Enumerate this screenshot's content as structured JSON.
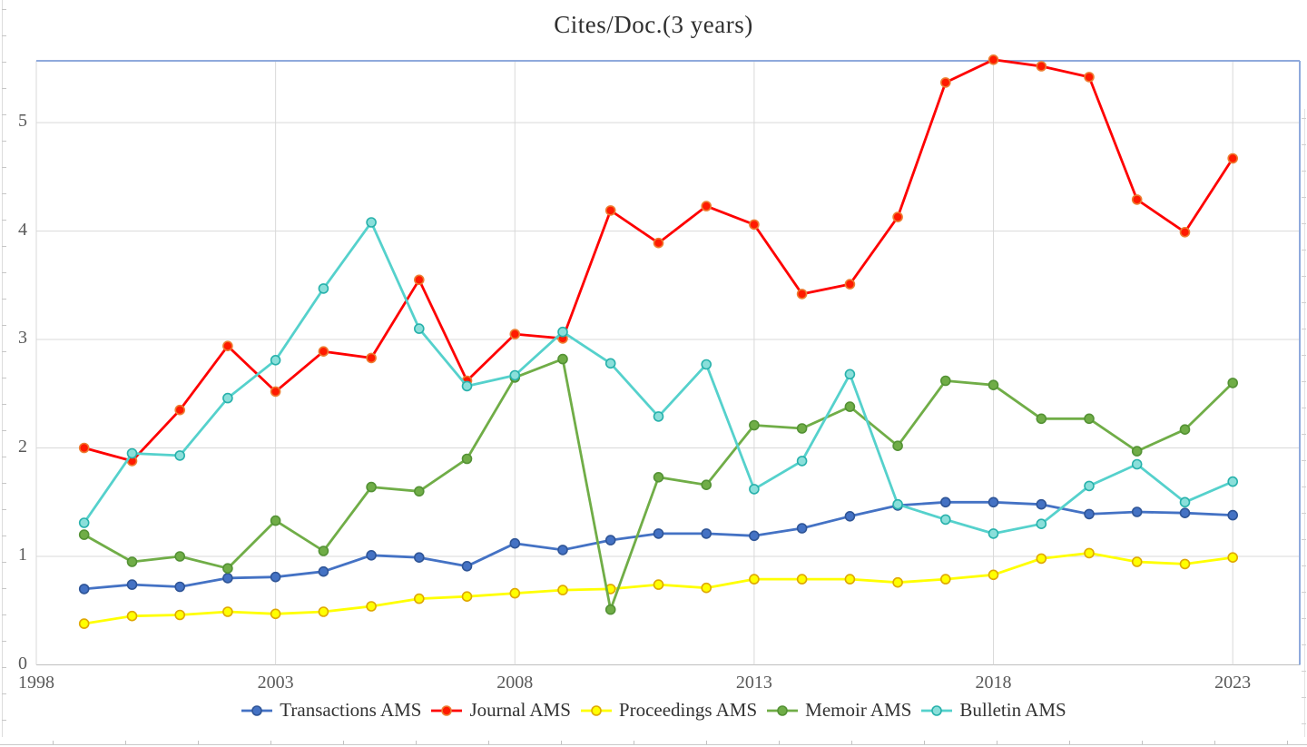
{
  "title": "Cites/Doc.(3 years)",
  "chart_data": {
    "type": "line",
    "title": "Cites/Doc.(3 years)",
    "x": [
      1999,
      2000,
      2001,
      2002,
      2003,
      2004,
      2005,
      2006,
      2007,
      2008,
      2009,
      2010,
      2011,
      2012,
      2013,
      2014,
      2015,
      2016,
      2017,
      2018,
      2019,
      2020,
      2021,
      2022,
      2023
    ],
    "series": [
      {
        "name": "Transactions AMS",
        "color": "#4472C4",
        "marker_fill": "#4472C4",
        "marker_stroke": "#2F5597",
        "values": [
          0.7,
          0.74,
          0.72,
          0.8,
          0.81,
          0.86,
          1.01,
          0.99,
          0.91,
          1.12,
          1.06,
          1.15,
          1.21,
          1.21,
          1.19,
          1.26,
          1.37,
          1.47,
          1.5,
          1.5,
          1.48,
          1.39,
          1.41,
          1.4,
          1.38
        ]
      },
      {
        "name": "Journal AMS",
        "color": "#FE0000",
        "marker_fill": "#FF1A00",
        "marker_stroke": "#ED7D31",
        "values": [
          2.0,
          1.88,
          2.35,
          2.94,
          2.52,
          2.89,
          2.83,
          3.55,
          2.62,
          3.05,
          3.01,
          4.19,
          3.89,
          4.23,
          4.06,
          3.42,
          3.51,
          4.13,
          5.37,
          5.58,
          5.52,
          5.42,
          4.29,
          3.99,
          4.67
        ]
      },
      {
        "name": "Proceedings AMS",
        "color": "#FFFF00",
        "marker_fill": "#FFFF00",
        "marker_stroke": "#DFA700",
        "values": [
          0.38,
          0.45,
          0.46,
          0.49,
          0.47,
          0.49,
          0.54,
          0.61,
          0.63,
          0.66,
          0.69,
          0.7,
          0.74,
          0.71,
          0.79,
          0.79,
          0.79,
          0.76,
          0.79,
          0.83,
          0.98,
          1.03,
          0.95,
          0.93,
          0.99
        ]
      },
      {
        "name": "Memoir AMS",
        "color": "#70AD47",
        "marker_fill": "#70AD47",
        "marker_stroke": "#549235",
        "values": [
          1.2,
          0.95,
          1.0,
          0.89,
          1.33,
          1.05,
          1.64,
          1.6,
          1.9,
          2.65,
          2.82,
          0.51,
          1.73,
          1.66,
          2.21,
          2.18,
          2.38,
          2.02,
          2.62,
          2.58,
          2.27,
          2.27,
          1.97,
          2.17,
          2.6
        ]
      },
      {
        "name": "Bulletin AMS",
        "color": "#55D1CC",
        "marker_fill": "#8ADFDA",
        "marker_stroke": "#27B1AB",
        "values": [
          1.31,
          1.95,
          1.93,
          2.46,
          2.81,
          3.47,
          4.08,
          3.1,
          2.57,
          2.67,
          3.07,
          2.78,
          2.29,
          2.77,
          1.62,
          1.88,
          2.68,
          1.48,
          1.34,
          1.21,
          1.3,
          1.65,
          1.85,
          1.5,
          1.69
        ]
      }
    ],
    "y_ticks": [
      "0",
      "1",
      "2",
      "3",
      "4",
      "5"
    ],
    "x_ticks": [
      "1998",
      "2003",
      "2008",
      "2013",
      "2018",
      "2023"
    ],
    "x_tick_years": [
      1998,
      2003,
      2008,
      2013,
      2018,
      2023
    ],
    "xlim": [
      1998,
      2024.4
    ],
    "ylim": [
      0,
      5.57
    ],
    "grid": true,
    "legend_position": "bottom",
    "gridline_color": "#D9D9D9",
    "axis_line_color": "#BFBFBF",
    "plot_border_color": "#8FAADC",
    "label_color": "#595959"
  }
}
